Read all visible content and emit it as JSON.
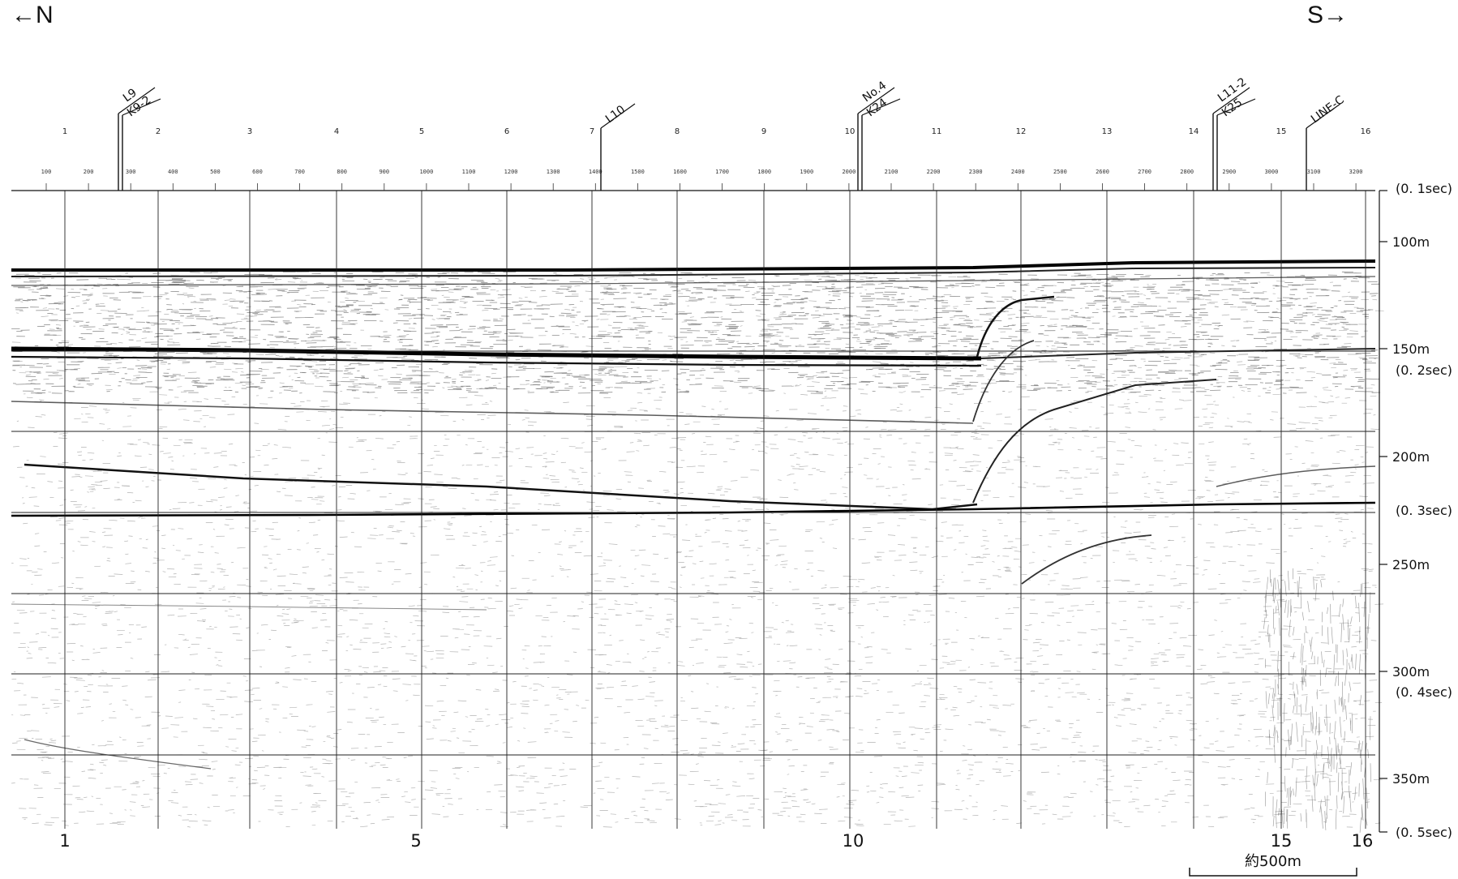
{
  "direction": {
    "left": "←N",
    "right": "S→"
  },
  "section_numbers_top": [
    "1",
    "2",
    "3",
    "4",
    "5",
    "6",
    "7",
    "8",
    "9",
    "10",
    "11",
    "12",
    "13",
    "14",
    "15",
    "16"
  ],
  "shot_points": [
    "100",
    "200",
    "300",
    "400",
    "500",
    "600",
    "700",
    "800",
    "900",
    "1000",
    "1100",
    "1200",
    "1300",
    "1400",
    "1500",
    "1600",
    "1700",
    "1800",
    "1900",
    "2000",
    "2100",
    "2200",
    "2300",
    "2400",
    "2500",
    "2600",
    "2700",
    "2800",
    "2900",
    "3000",
    "3100",
    "3200"
  ],
  "crossing_lines": [
    {
      "labels": [
        "L9",
        "K9-2"
      ]
    },
    {
      "labels": [
        "L10"
      ]
    },
    {
      "labels": [
        "No.4",
        "K24"
      ]
    },
    {
      "labels": [
        "L11-2",
        "K25"
      ]
    },
    {
      "labels": [
        "LINE-C"
      ]
    }
  ],
  "depth_axis": [
    {
      "text": "(0. 1sec)"
    },
    {
      "text": "100m"
    },
    {
      "text": "150m"
    },
    {
      "text": "(0. 2sec)"
    },
    {
      "text": "200m"
    },
    {
      "text": "(0. 3sec)"
    },
    {
      "text": "250m"
    },
    {
      "text": "300m"
    },
    {
      "text": "(0. 4sec)"
    },
    {
      "text": "350m"
    },
    {
      "text": "(0. 5sec)"
    }
  ],
  "bottom_numbers": [
    "1",
    "5",
    "10",
    "15",
    "16"
  ],
  "scale_bar": {
    "label": "約500m"
  },
  "colors": {
    "ink": "#111111",
    "background": "#ffffff"
  }
}
